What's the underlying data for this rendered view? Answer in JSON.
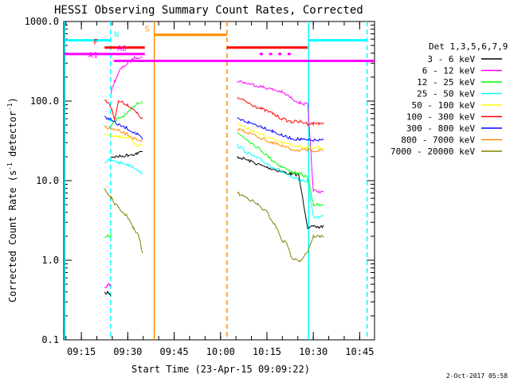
{
  "chart_data": {
    "type": "line",
    "title": "HESSI Observing Summary Count Rates, Corrected",
    "xlabel": "Start Time (23-Apr-15 09:09:22)",
    "ylabel_main": "Corrected Count Rate (s",
    "ylabel_sup1": "-1",
    "ylabel_mid": " detector",
    "ylabel_sup2": "-1",
    "ylabel_end": ")",
    "yscale": "log",
    "ylim": [
      0.1,
      1000
    ],
    "y_ticks": [
      0.1,
      1,
      10,
      100,
      1000
    ],
    "y_tick_labels": [
      "0.1",
      "1.0",
      "10.0",
      "100.0",
      "1000.0"
    ],
    "xlim": [
      9.155,
      10.83
    ],
    "x_ticks": [
      9.25,
      9.5,
      9.75,
      10.0,
      10.25,
      10.5,
      10.75
    ],
    "x_tick_labels": [
      "09:15",
      "09:30",
      "09:45",
      "10:00",
      "10:15",
      "10:30",
      "10:45"
    ],
    "x_minor_step": 0.0833333,
    "legend_title": "Det 1,3,5,6,7,9",
    "legend_position": "right",
    "timestamp": "2-Oct-2017 05:58",
    "series": [
      {
        "name": "3 - 6 keV",
        "color": "#000000",
        "segments": [
          [
            [
              9.375,
              0.38
            ],
            [
              9.392,
              0.4
            ],
            [
              9.4,
              0.38
            ],
            [
              9.41,
              0.37
            ]
          ],
          [
            [
              9.41,
              20
            ],
            [
              9.45,
              20
            ],
            [
              9.5,
              21
            ],
            [
              9.55,
              22
            ],
            [
              9.58,
              23
            ]
          ],
          [
            [
              10.09,
              20
            ],
            [
              10.15,
              18
            ],
            [
              10.22,
              15.5
            ],
            [
              10.28,
              14
            ],
            [
              10.33,
              13
            ],
            [
              10.38,
              12
            ],
            [
              10.42,
              12
            ],
            [
              10.47,
              2.6
            ],
            [
              10.5,
              2.6
            ],
            [
              10.53,
              2.6
            ],
            [
              10.555,
              2.7
            ]
          ]
        ]
      },
      {
        "name": "6 - 12 keV",
        "color": "#ff00ff",
        "segments": [
          [
            [
              9.375,
              0.45
            ],
            [
              9.392,
              0.48
            ],
            [
              9.41,
              0.5
            ]
          ],
          [
            [
              9.41,
              130
            ],
            [
              9.43,
              180
            ],
            [
              9.46,
              250
            ],
            [
              9.5,
              300
            ],
            [
              9.53,
              340
            ],
            [
              9.55,
              360
            ],
            [
              9.58,
              350
            ]
          ],
          [
            [
              10.09,
              180
            ],
            [
              10.13,
              170
            ],
            [
              10.18,
              160
            ],
            [
              10.23,
              150
            ],
            [
              10.28,
              140
            ],
            [
              10.33,
              130
            ],
            [
              10.38,
              110
            ],
            [
              10.43,
              95
            ],
            [
              10.47,
              90
            ],
            [
              10.5,
              7.5
            ],
            [
              10.53,
              7.2
            ],
            [
              10.555,
              7.5
            ]
          ]
        ]
      },
      {
        "name": "12 - 25 keV",
        "color": "#00ff00",
        "segments": [
          [
            [
              9.375,
              1.9
            ],
            [
              9.392,
              2.0
            ],
            [
              9.41,
              2.1
            ]
          ],
          [
            [
              9.41,
              50
            ],
            [
              9.45,
              60
            ],
            [
              9.5,
              70
            ],
            [
              9.55,
              95
            ],
            [
              9.58,
              100
            ]
          ],
          [
            [
              10.09,
              40
            ],
            [
              10.15,
              32
            ],
            [
              10.22,
              24
            ],
            [
              10.28,
              18
            ],
            [
              10.33,
              15
            ],
            [
              10.38,
              13
            ],
            [
              10.43,
              12
            ],
            [
              10.47,
              11
            ],
            [
              10.5,
              5
            ],
            [
              10.53,
              5
            ],
            [
              10.555,
              5
            ]
          ]
        ]
      },
      {
        "name": "25 - 50 keV",
        "color": "#00ffff",
        "segments": [
          [
            [
              9.375,
              17
            ],
            [
              9.4,
              18
            ],
            [
              9.45,
              17
            ],
            [
              9.5,
              16
            ],
            [
              9.55,
              14
            ],
            [
              9.58,
              12
            ]
          ],
          [
            [
              10.09,
              28
            ],
            [
              10.15,
              22
            ],
            [
              10.22,
              18
            ],
            [
              10.28,
              15
            ],
            [
              10.33,
              13
            ],
            [
              10.38,
              11
            ],
            [
              10.43,
              10
            ],
            [
              10.47,
              10
            ],
            [
              10.5,
              3.5
            ],
            [
              10.53,
              3.5
            ],
            [
              10.555,
              3.6
            ]
          ]
        ]
      },
      {
        "name": "50 - 100 keV",
        "color": "#ffff00",
        "segments": [
          [
            [
              9.375,
              40
            ],
            [
              9.4,
              38
            ],
            [
              9.45,
              36
            ],
            [
              9.5,
              35
            ],
            [
              9.55,
              28
            ],
            [
              9.58,
              28
            ]
          ],
          [
            [
              10.09,
              52
            ],
            [
              10.15,
              45
            ],
            [
              10.22,
              38
            ],
            [
              10.28,
              33
            ],
            [
              10.33,
              30
            ],
            [
              10.38,
              28
            ],
            [
              10.43,
              27
            ],
            [
              10.47,
              26
            ],
            [
              10.5,
              26
            ],
            [
              10.53,
              26
            ],
            [
              10.555,
              26
            ]
          ]
        ]
      },
      {
        "name": "100 - 300 keV",
        "color": "#ff0000",
        "segments": [
          [
            [
              9.375,
              100
            ],
            [
              9.4,
              95
            ],
            [
              9.43,
              60
            ],
            [
              9.45,
              100
            ],
            [
              9.5,
              90
            ],
            [
              9.55,
              70
            ],
            [
              9.58,
              60
            ]
          ],
          [
            [
              10.09,
              110
            ],
            [
              10.15,
              95
            ],
            [
              10.22,
              80
            ],
            [
              10.28,
              70
            ],
            [
              10.33,
              60
            ],
            [
              10.38,
              55
            ],
            [
              10.43,
              55
            ],
            [
              10.47,
              52
            ],
            [
              10.5,
              52
            ],
            [
              10.53,
              53
            ],
            [
              10.555,
              52
            ]
          ]
        ]
      },
      {
        "name": "300 - 800 keV",
        "color": "#0000ff",
        "segments": [
          [
            [
              9.375,
              62
            ],
            [
              9.4,
              60
            ],
            [
              9.45,
              50
            ],
            [
              9.5,
              45
            ],
            [
              9.55,
              38
            ],
            [
              9.58,
              33
            ]
          ],
          [
            [
              10.09,
              60
            ],
            [
              10.15,
              54
            ],
            [
              10.22,
              48
            ],
            [
              10.28,
              42
            ],
            [
              10.33,
              37
            ],
            [
              10.38,
              34
            ],
            [
              10.43,
              33
            ],
            [
              10.47,
              32
            ],
            [
              10.5,
              32
            ],
            [
              10.53,
              32
            ],
            [
              10.555,
              32
            ]
          ]
        ]
      },
      {
        "name": "800 - 7000 keV",
        "color": "#ff8c00",
        "segments": [
          [
            [
              9.375,
              48
            ],
            [
              9.4,
              46
            ],
            [
              9.45,
              42
            ],
            [
              9.5,
              38
            ],
            [
              9.55,
              32
            ],
            [
              9.58,
              30
            ]
          ],
          [
            [
              10.09,
              45
            ],
            [
              10.15,
              40
            ],
            [
              10.22,
              34
            ],
            [
              10.28,
              30
            ],
            [
              10.33,
              27
            ],
            [
              10.38,
              25
            ],
            [
              10.43,
              24
            ],
            [
              10.47,
              24
            ],
            [
              10.5,
              24
            ],
            [
              10.53,
              24
            ],
            [
              10.555,
              24
            ]
          ]
        ]
      },
      {
        "name": "7000 - 20000 keV",
        "color": "#808000",
        "segments": [
          [
            [
              9.375,
              8
            ],
            [
              9.39,
              7
            ],
            [
              9.41,
              6
            ],
            [
              9.45,
              4.5
            ],
            [
              9.5,
              3.5
            ],
            [
              9.53,
              2.5
            ],
            [
              9.56,
              2
            ],
            [
              9.58,
              1.2
            ]
          ],
          [
            [
              10.09,
              7
            ],
            [
              10.15,
              6
            ],
            [
              10.2,
              5
            ],
            [
              10.25,
              4
            ],
            [
              10.3,
              2.6
            ],
            [
              10.33,
              1.8
            ],
            [
              10.36,
              1.6
            ],
            [
              10.38,
              1.1
            ],
            [
              10.4,
              1.0
            ],
            [
              10.43,
              1.0
            ],
            [
              10.47,
              1.3
            ],
            [
              10.5,
              2.0
            ],
            [
              10.53,
              2.0
            ],
            [
              10.555,
              2.0
            ]
          ]
        ]
      }
    ],
    "vlines": [
      {
        "x": 9.16,
        "color": "#00ffff",
        "style": "solid"
      },
      {
        "x": 9.408,
        "color": "#00ffff",
        "style": "dashed"
      },
      {
        "x": 9.643,
        "color": "#ff8c00",
        "style": "solid"
      },
      {
        "x": 10.035,
        "color": "#ff8c00",
        "style": "dashed"
      },
      {
        "x": 10.475,
        "color": "#00ffff",
        "style": "solid"
      },
      {
        "x": 10.79,
        "color": "#00ffff",
        "style": "dashed"
      }
    ],
    "flag_bars": [
      {
        "label": "N",
        "color": "#00ffff",
        "y": 580,
        "segments": [
          [
            9.16,
            9.408
          ],
          [
            10.475,
            10.79
          ]
        ]
      },
      {
        "label": "S",
        "color": "#ff8c00",
        "y": 680,
        "segments": [
          [
            9.643,
            10.035
          ]
        ]
      },
      {
        "label": "F",
        "color": "#ff0000",
        "y": 470,
        "segments": [
          [
            9.375,
            9.592
          ],
          [
            10.035,
            10.47
          ]
        ]
      },
      {
        "label": "AO",
        "color": "#ff00ff",
        "y": 390,
        "segments": [
          [
            9.16,
            9.592
          ]
        ]
      },
      {
        "label": "A1",
        "color": "#ff00ff",
        "y": 320,
        "segments": [
          [
            9.425,
            10.83
          ]
        ]
      }
    ],
    "flag_dots": {
      "color": "#ff00ff",
      "y": 395,
      "x": [
        10.22,
        10.27,
        10.32,
        10.37
      ]
    }
  }
}
